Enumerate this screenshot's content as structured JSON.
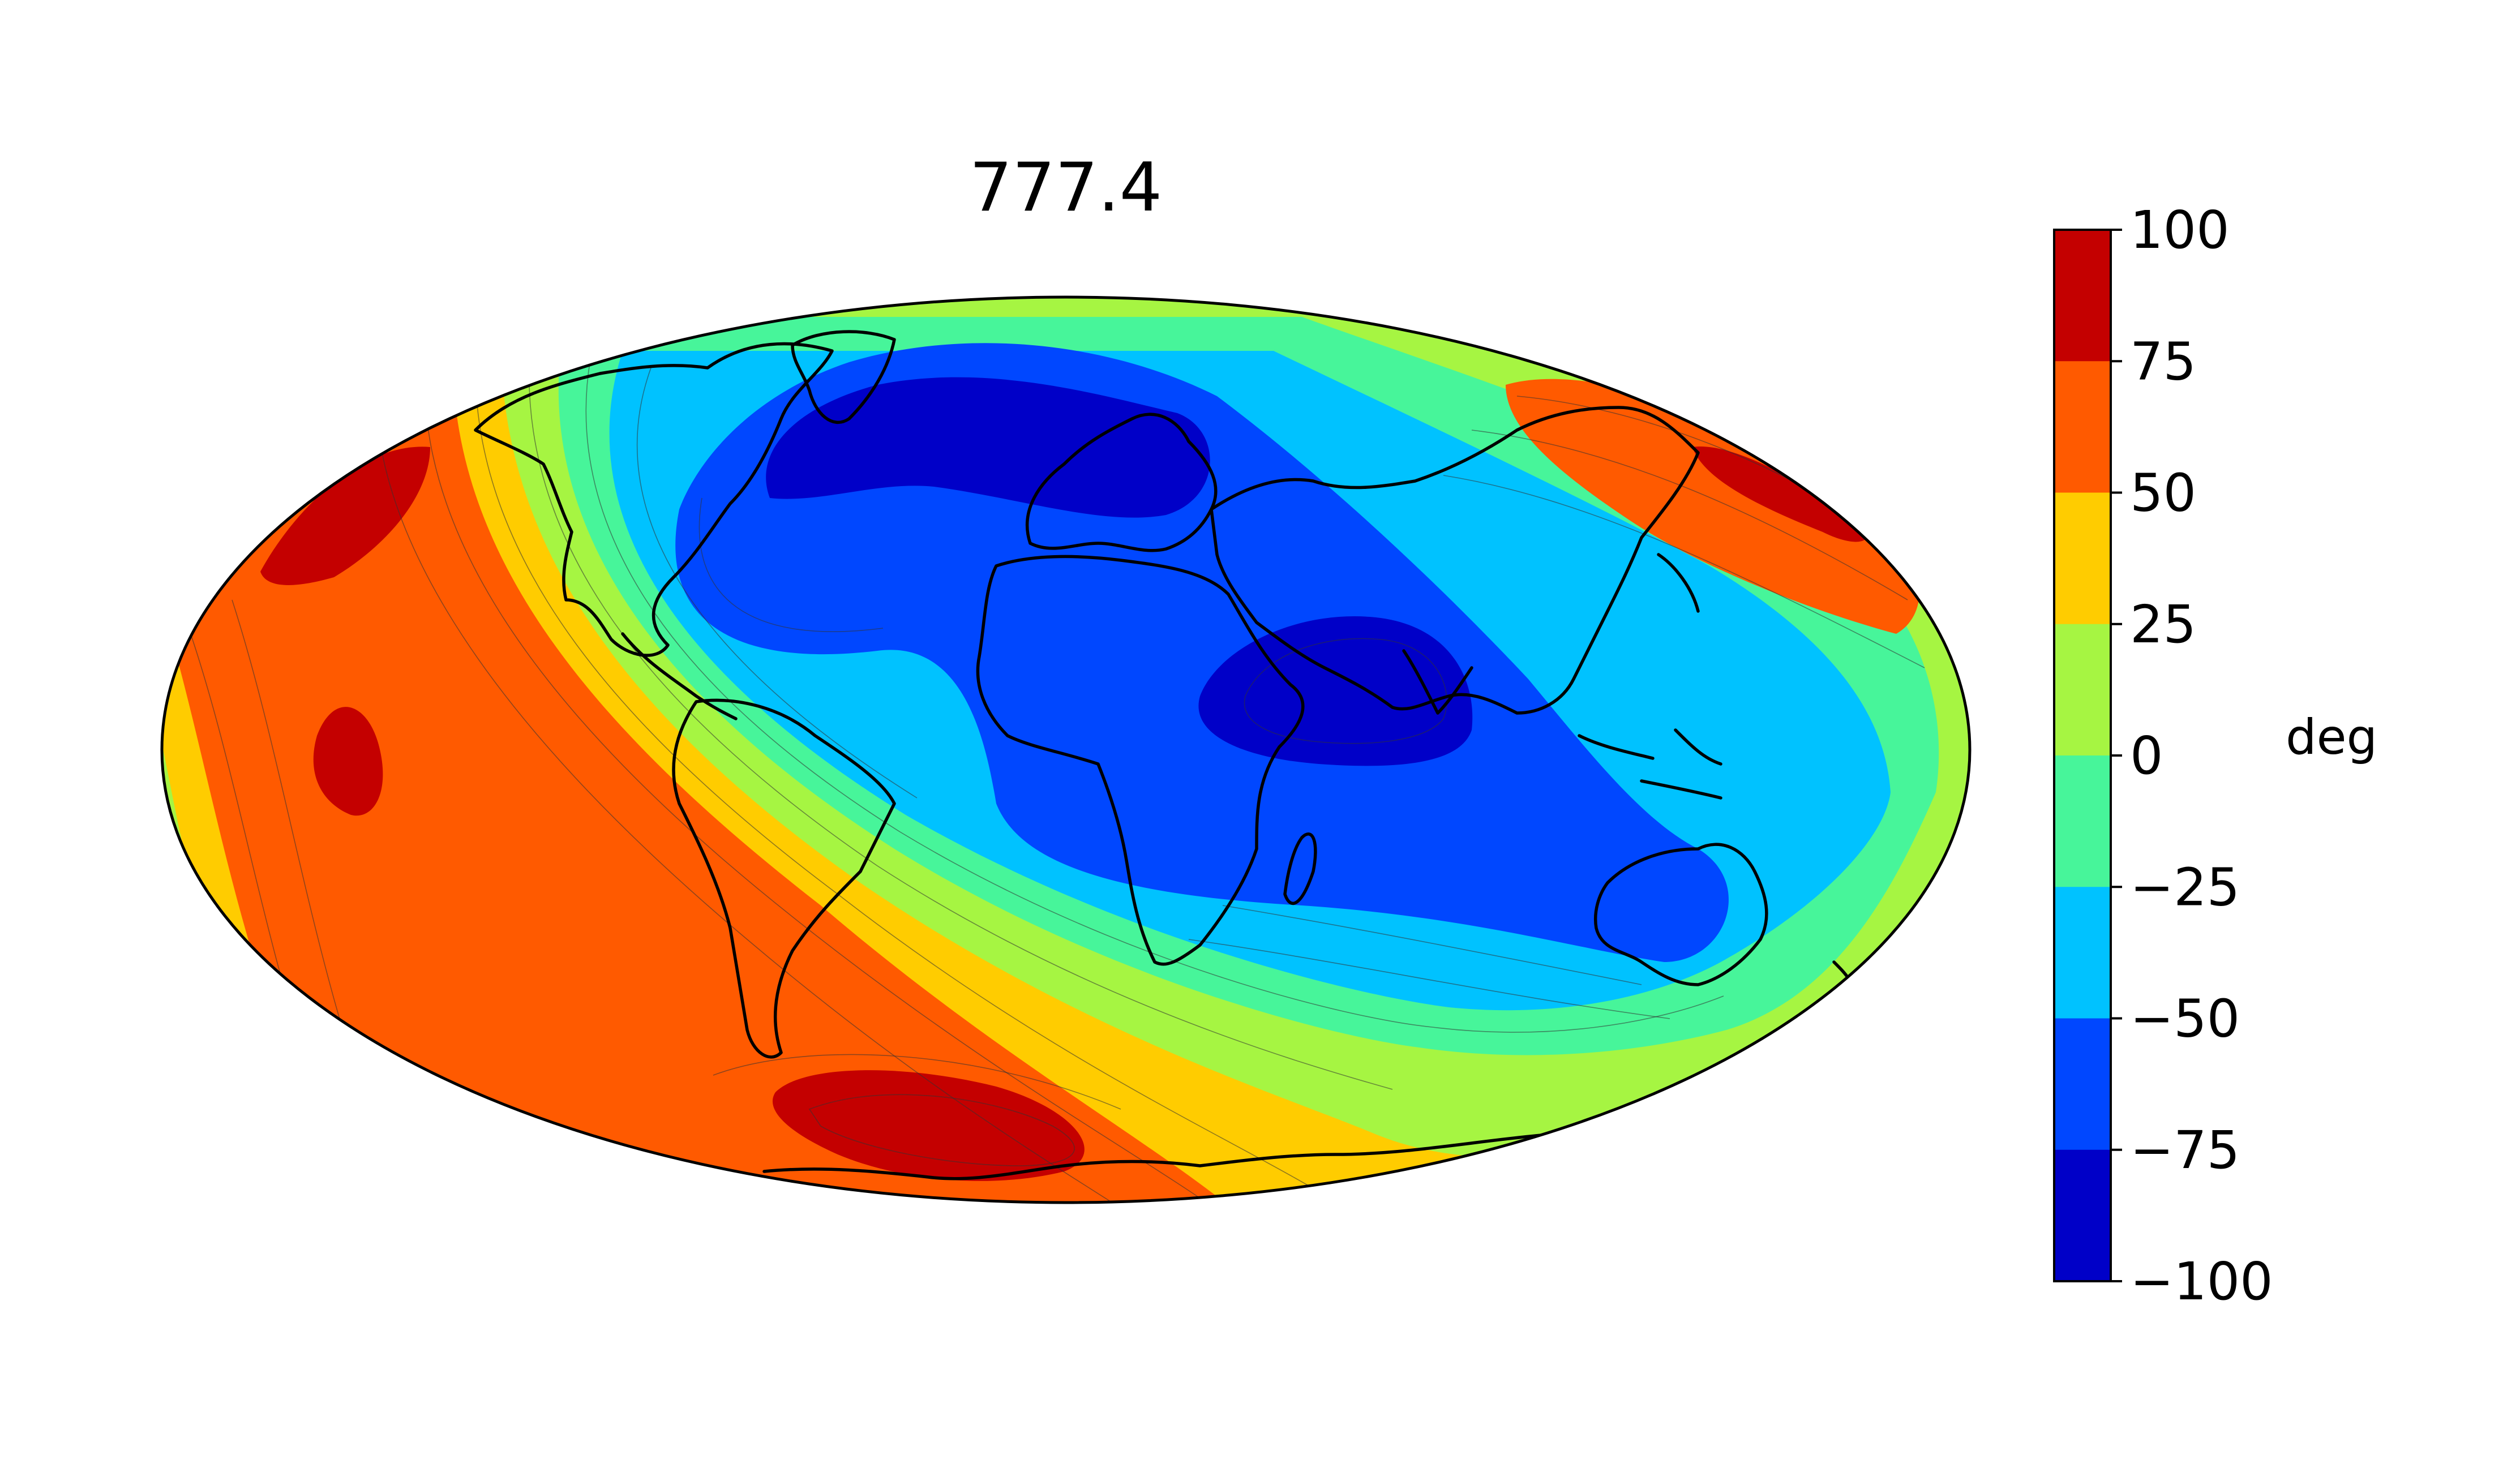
{
  "title": "777.4",
  "colorbar": {
    "unit": "deg",
    "ticks": [
      "100",
      "75",
      "50",
      "25",
      "0",
      "−25",
      "−50",
      "−75",
      "−100"
    ],
    "levels": [
      {
        "from": 75,
        "to": 100,
        "color": "#c40000"
      },
      {
        "from": 50,
        "to": 75,
        "color": "#ff5a00"
      },
      {
        "from": 25,
        "to": 50,
        "color": "#ffcc00"
      },
      {
        "from": 0,
        "to": 25,
        "color": "#a6f542"
      },
      {
        "from": -25,
        "to": 0,
        "color": "#47f59a"
      },
      {
        "from": -50,
        "to": -25,
        "color": "#00c2ff"
      },
      {
        "from": -75,
        "to": -50,
        "color": "#0047ff"
      },
      {
        "from": -100,
        "to": -75,
        "color": "#0000c8"
      }
    ]
  },
  "map": {
    "projection": "Hammer (world, global)",
    "field": "inclination contours",
    "features": [
      "coastlines",
      "filled contours",
      "thin contour lines"
    ]
  }
}
